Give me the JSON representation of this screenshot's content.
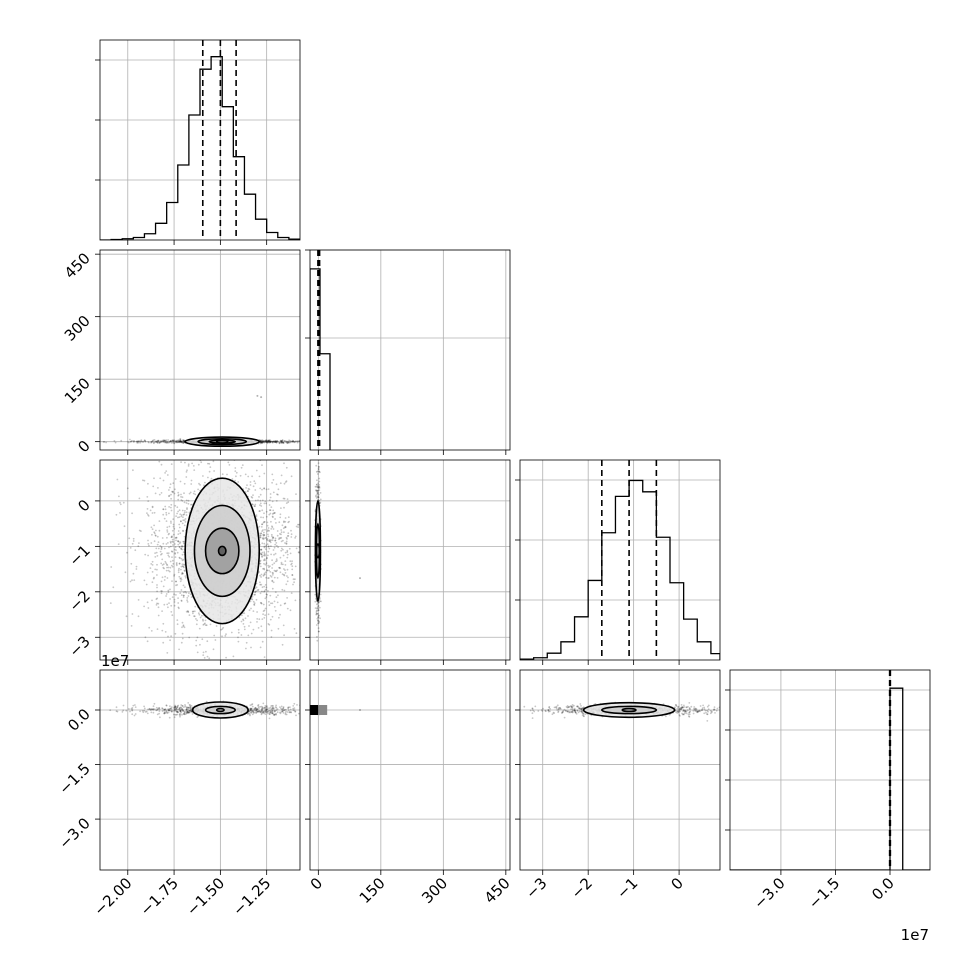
{
  "chart_data": {
    "type": "corner",
    "n_params": 4,
    "params": [
      {
        "range": [
          -2.15,
          -1.07
        ],
        "ticks": [
          -2.0,
          -1.75,
          -1.5,
          -1.25
        ],
        "tick_labels": [
          "−2.00",
          "−1.75",
          "−1.50",
          "−1.25"
        ]
      },
      {
        "range": [
          -20,
          460
        ],
        "ticks": [
          0,
          150,
          300,
          450
        ],
        "tick_labels": [
          "0",
          "150",
          "300",
          "450"
        ]
      },
      {
        "range": [
          -3.5,
          0.9
        ],
        "ticks": [
          -3,
          -2,
          -1,
          0
        ],
        "tick_labels": [
          "−3",
          "−2",
          "−1",
          "0"
        ],
        "offset_label": "1e7"
      },
      {
        "range": [
          -4.4,
          1.1
        ],
        "ticks": [
          -3.0,
          -1.5,
          0.0
        ],
        "tick_labels": [
          "−3.0",
          "−1.5",
          "0.0"
        ],
        "offset_label": "1e7"
      }
    ],
    "diagonal": [
      {
        "bin_edges": [
          -2.15,
          -2.09,
          -2.03,
          -1.97,
          -1.91,
          -1.85,
          -1.79,
          -1.73,
          -1.67,
          -1.61,
          -1.55,
          -1.49,
          -1.43,
          -1.37,
          -1.31,
          -1.25,
          -1.19,
          -1.13,
          -1.07
        ],
        "counts": [
          0,
          1,
          3,
          6,
          15,
          40,
          90,
          180,
          300,
          410,
          440,
          320,
          200,
          110,
          50,
          18,
          6,
          2
        ],
        "ymax": 480,
        "quantiles": [
          -1.595,
          -1.5,
          -1.415
        ],
        "ytick_fracs": [
          0.3,
          0.6,
          0.9
        ]
      },
      {
        "bin_edges": [
          -20,
          4,
          28
        ],
        "counts": [
          480,
          255
        ],
        "ymax": 530,
        "quantiles": [
          -1,
          1,
          3
        ],
        "ytick_fracs": [
          0.56,
          1.0
        ]
      },
      {
        "bin_edges": [
          -3.5,
          -3.2,
          -2.9,
          -2.6,
          -2.3,
          -2.0,
          -1.7,
          -1.4,
          -1.1,
          -0.8,
          -0.5,
          -0.2,
          0.1,
          0.4,
          0.7,
          0.9
        ],
        "counts": [
          2,
          5,
          15,
          40,
          95,
          175,
          280,
          360,
          395,
          370,
          270,
          170,
          90,
          40,
          14
        ],
        "ymax": 440,
        "quantiles": [
          -1.7,
          -1.1,
          -0.5
        ],
        "ytick_fracs": [
          0.3,
          0.6,
          0.9
        ]
      },
      {
        "bin_edges": [
          -4.4,
          0.0,
          0.35,
          1.1
        ],
        "counts": [
          0,
          200,
          0
        ],
        "ymax": 220,
        "quantiles": [
          -0.01,
          0.0,
          0.01
        ],
        "ytick_fracs": [
          0.2,
          0.45,
          0.7,
          0.9
        ]
      }
    ],
    "pairs": [
      {
        "row": 1,
        "col": 0,
        "center": [
          -1.49,
          0
        ],
        "spread": [
          0.22,
          2
        ],
        "contour_radii": [
          [
            0.03,
            1.5
          ],
          [
            0.07,
            3.5
          ],
          [
            0.13,
            7
          ],
          [
            0.2,
            11
          ]
        ],
        "point_count": 900,
        "outliers": [
          [
            -1.3,
            110
          ],
          [
            -1.28,
            107
          ]
        ]
      },
      {
        "row": 2,
        "col": 0,
        "center": [
          -1.49,
          -1.1
        ],
        "spread": [
          0.2,
          0.9
        ],
        "contour_radii": [
          [
            0.02,
            0.1
          ],
          [
            0.09,
            0.5
          ],
          [
            0.15,
            1.0
          ],
          [
            0.2,
            1.6
          ]
        ],
        "point_count": 2600,
        "outliers": []
      },
      {
        "row": 2,
        "col": 1,
        "center": [
          -1,
          -1.1
        ],
        "spread": [
          3,
          0.8
        ],
        "contour_radii": [
          [
            1.5,
            0.15
          ],
          [
            3.5,
            0.6
          ],
          [
            6,
            1.1
          ]
        ],
        "point_count": 500,
        "outliers": [
          [
            100,
            -1.7
          ]
        ]
      },
      {
        "row": 3,
        "col": 0,
        "center": [
          -1.5,
          0.0
        ],
        "spread": [
          0.22,
          0.07
        ],
        "contour_radii": [
          [
            0.02,
            0.02
          ],
          [
            0.08,
            0.1
          ],
          [
            0.15,
            0.22
          ]
        ],
        "point_count": 900,
        "outliers": []
      },
      {
        "row": 3,
        "col": 1,
        "center": [
          2,
          0.0
        ],
        "spread": [
          6,
          0.05
        ],
        "contour_radii": [],
        "point_count": 120,
        "outliers": [
          [
            100,
            0.0
          ]
        ]
      },
      {
        "row": 3,
        "col": 2,
        "center": [
          -1.1,
          0.0
        ],
        "spread": [
          0.9,
          0.07
        ],
        "contour_radii": [
          [
            0.15,
            0.02
          ],
          [
            0.6,
            0.1
          ],
          [
            1.0,
            0.2
          ]
        ],
        "point_count": 900,
        "outliers": []
      }
    ],
    "grid": true,
    "xlabel": "",
    "ylabel": "",
    "title": ""
  }
}
